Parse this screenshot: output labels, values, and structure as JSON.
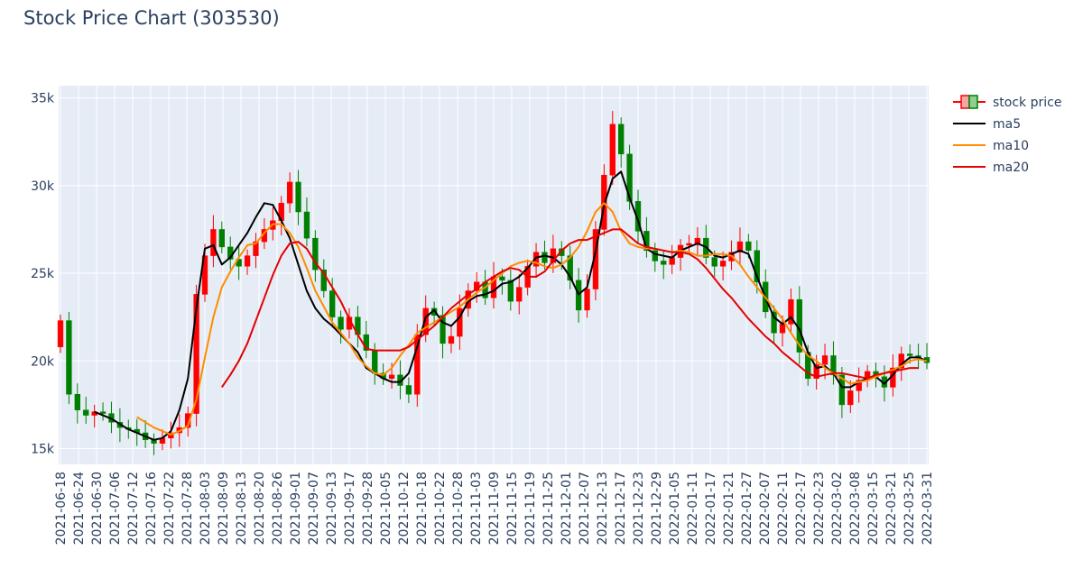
{
  "chart_data": {
    "type": "candlestick",
    "title": "Stock Price Chart (303530)",
    "xlabel": "",
    "ylabel": "",
    "ylim": [
      14100,
      35700
    ],
    "grid": true,
    "legend_position": "top-right",
    "y_ticks": [
      15000,
      20000,
      25000,
      30000,
      35000
    ],
    "y_tick_labels": [
      "15k",
      "20k",
      "25k",
      "30k",
      "35k"
    ],
    "x_tick_labels": [
      "2021-06-18",
      "2021-06-24",
      "2021-06-30",
      "2021-07-06",
      "2021-07-12",
      "2021-07-16",
      "2021-07-22",
      "2021-07-28",
      "2021-08-03",
      "2021-08-09",
      "2021-08-13",
      "2021-08-20",
      "2021-08-26",
      "2021-09-01",
      "2021-09-07",
      "2021-09-13",
      "2021-09-17",
      "2021-09-28",
      "2021-10-05",
      "2021-10-12",
      "2021-10-18",
      "2021-10-22",
      "2021-10-28",
      "2021-11-03",
      "2021-11-09",
      "2021-11-15",
      "2021-11-19",
      "2021-11-25",
      "2021-12-01",
      "2021-12-07",
      "2021-12-13",
      "2021-12-17",
      "2021-12-23",
      "2021-12-29",
      "2022-01-05",
      "2022-01-11",
      "2022-01-17",
      "2022-01-21",
      "2022-01-27",
      "2022-02-07",
      "2022-02-11",
      "2022-02-17",
      "2022-02-23",
      "2022-03-02",
      "2022-03-08",
      "2022-03-15",
      "2022-03-21",
      "2022-03-25",
      "2022-03-31"
    ],
    "series": [
      {
        "name": "stock price",
        "kind": "candlestick",
        "increasing_color": "#ff0000",
        "decreasing_color": "#008000",
        "close": [
          22300,
          18100,
          17200,
          16900,
          17100,
          17000,
          16500,
          16200,
          16100,
          15900,
          15500,
          15300,
          15600,
          15900,
          16200,
          17000,
          23800,
          26000,
          27500,
          26500,
          25800,
          25400,
          26000,
          26800,
          27500,
          28000,
          29000,
          30200,
          28500,
          27000,
          25200,
          24000,
          22500,
          21800,
          22500,
          21500,
          20600,
          19300,
          19000,
          19200,
          18600,
          18100,
          21500,
          23000,
          22600,
          21000,
          21400,
          23000,
          24000,
          24500,
          23600,
          24800,
          24600,
          23400,
          24200,
          25400,
          26200,
          25600,
          26400,
          26000,
          24600,
          22900,
          24100,
          27500,
          30600,
          33500,
          31800,
          29100,
          27400,
          26300,
          25700,
          25500,
          25900,
          26600,
          26700,
          27000,
          25900,
          25400,
          25700,
          26200,
          26800,
          26300,
          24500,
          22800,
          21600,
          22100,
          23500,
          20500,
          19000,
          19800,
          20300,
          19200,
          17500,
          18300,
          18900,
          19400,
          19100,
          18500,
          19600,
          20400,
          20300,
          20200,
          19900
        ]
      },
      {
        "name": "ma5",
        "kind": "line",
        "color": "#000000",
        "values": [
          null,
          null,
          null,
          null,
          17100,
          16900,
          16700,
          16400,
          16100,
          15900,
          15700,
          15500,
          15600,
          16000,
          17200,
          19000,
          23000,
          26400,
          26600,
          25500,
          25900,
          26600,
          27300,
          28200,
          29000,
          28900,
          28000,
          27000,
          25500,
          24000,
          23000,
          22400,
          22000,
          21500,
          21000,
          20500,
          19600,
          19300,
          19000,
          18800,
          18800,
          19300,
          20800,
          22500,
          22900,
          22200,
          22000,
          22500,
          23400,
          23700,
          23800,
          24000,
          24400,
          24500,
          24800,
          25300,
          25900,
          26000,
          25900,
          25500,
          24800,
          23800,
          24200,
          26200,
          28900,
          30400,
          30800,
          29300,
          28000,
          26400,
          26100,
          26000,
          25900,
          26300,
          26500,
          26700,
          26500,
          26000,
          25900,
          26100,
          26300,
          26100,
          24800,
          23600,
          22500,
          22100,
          22500,
          21800,
          20500,
          19600,
          19700,
          19300,
          18500,
          18500,
          18800,
          19000,
          19100,
          18700,
          19200,
          19800,
          20200,
          20200,
          20000
        ]
      },
      {
        "name": "ma10",
        "kind": "line",
        "color": "#ff8c00",
        "values": [
          null,
          null,
          null,
          null,
          null,
          null,
          null,
          null,
          null,
          16800,
          16500,
          16200,
          16000,
          15800,
          16000,
          16300,
          17800,
          20200,
          22500,
          24200,
          25100,
          25900,
          26600,
          26700,
          27300,
          27800,
          27800,
          27300,
          26500,
          25300,
          24000,
          23100,
          22200,
          21600,
          21000,
          20200,
          19700,
          19300,
          19200,
          19600,
          20300,
          20900,
          21600,
          21900,
          22200,
          22500,
          22800,
          23100,
          23500,
          23900,
          24200,
          24600,
          25000,
          25400,
          25600,
          25700,
          25600,
          25400,
          25300,
          25500,
          25900,
          26500,
          27400,
          28500,
          29000,
          28500,
          27400,
          26700,
          26500,
          26400,
          26400,
          26300,
          26200,
          26300,
          26200,
          26000,
          26000,
          26100,
          26100,
          26000,
          25500,
          24800,
          24200,
          23600,
          23000,
          22400,
          21600,
          20900,
          20300,
          20000,
          19600,
          19300,
          19000,
          18700,
          18800,
          18900,
          19100,
          19300,
          19500,
          19700,
          20000,
          20100,
          20000
        ]
      },
      {
        "name": "ma20",
        "kind": "line",
        "color": "#e50000",
        "values": [
          null,
          null,
          null,
          null,
          null,
          null,
          null,
          null,
          null,
          null,
          null,
          null,
          null,
          null,
          null,
          null,
          null,
          null,
          null,
          18500,
          19200,
          20000,
          21000,
          22300,
          23600,
          24900,
          26000,
          26700,
          26800,
          26400,
          25600,
          25000,
          24200,
          23400,
          22400,
          21500,
          20700,
          20600,
          20600,
          20600,
          20600,
          20800,
          21200,
          21600,
          22000,
          22500,
          23000,
          23400,
          23800,
          24100,
          24500,
          24800,
          25100,
          25300,
          25200,
          24800,
          24800,
          25100,
          25700,
          26300,
          26700,
          26900,
          26900,
          27100,
          27300,
          27500,
          27500,
          27100,
          26700,
          26500,
          26400,
          26300,
          26200,
          26200,
          26100,
          25800,
          25300,
          24700,
          24100,
          23600,
          23000,
          22400,
          21900,
          21400,
          21000,
          20500,
          20100,
          19700,
          19300,
          19100,
          19200,
          19300,
          19300,
          19200,
          19100,
          19000,
          19200,
          19300,
          19400,
          19500,
          19600,
          19600
        ]
      }
    ]
  }
}
